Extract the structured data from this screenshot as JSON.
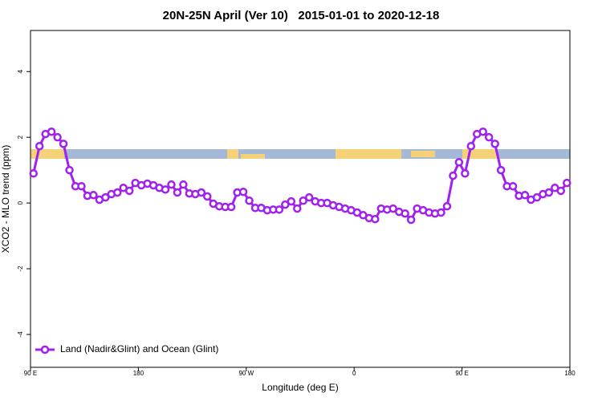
{
  "chart_data": {
    "type": "line",
    "title": "20N-25N April (Ver 10)   2015-01-01 to 2020-12-18",
    "x_label": "Longitude (deg E)",
    "y_label": "XCO2 - MLO trend (ppm)",
    "x": [
      92.5,
      97.5,
      102.5,
      107.5,
      112.5,
      117.5,
      122.5,
      127.5,
      132.5,
      137.5,
      142.5,
      147.5,
      152.5,
      157.5,
      162.5,
      167.5,
      172.5,
      177.5,
      182.5,
      187.5,
      192.5,
      197.5,
      202.5,
      207.5,
      212.5,
      217.5,
      222.5,
      227.5,
      232.5,
      237.5,
      242.5,
      247.5,
      252.5,
      257.5,
      262.5,
      267.5,
      272.5,
      277.5,
      282.5,
      287.5,
      292.5,
      297.5,
      302.5,
      307.5,
      312.5,
      317.5,
      322.5,
      327.5,
      332.5,
      337.5,
      342.5,
      347.5,
      352.5,
      357.5,
      362.5,
      367.5,
      372.5,
      377.5,
      382.5,
      387.5,
      392.5,
      397.5,
      402.5,
      407.5,
      412.5,
      417.5,
      422.5,
      427.5,
      432.5,
      437.5,
      442.5,
      447.5,
      452.5,
      457.5,
      462.5,
      467.5,
      472.5,
      477.5,
      482.5,
      487.5,
      492.5,
      497.5,
      502.5,
      507.5,
      512.5,
      517.5,
      522.5,
      527.5,
      532.5,
      537.5
    ],
    "series": [
      {
        "name": "Land (Nadir&Glint) and Ocean (Glint)",
        "color": "#a020f0",
        "values": [
          0.9,
          1.73,
          2.1,
          2.17,
          2.0,
          1.8,
          1.0,
          0.51,
          0.51,
          0.22,
          0.24,
          0.1,
          0.17,
          0.27,
          0.32,
          0.46,
          0.37,
          0.61,
          0.54,
          0.59,
          0.54,
          0.46,
          0.41,
          0.56,
          0.32,
          0.56,
          0.29,
          0.27,
          0.32,
          0.2,
          -0.02,
          -0.1,
          -0.12,
          -0.12,
          0.32,
          0.34,
          0.07,
          -0.15,
          -0.15,
          -0.22,
          -0.2,
          -0.2,
          -0.05,
          0.05,
          -0.17,
          0.07,
          0.17,
          0.05,
          0,
          0,
          -0.07,
          -0.12,
          -0.17,
          -0.22,
          -0.29,
          -0.37,
          -0.46,
          -0.49,
          -0.17,
          -0.2,
          -0.17,
          -0.27,
          -0.32,
          -0.51,
          -0.17,
          -0.22,
          -0.29,
          -0.32,
          -0.29,
          -0.1,
          0.83,
          1.24,
          0.9,
          1.73,
          2.1,
          2.17,
          2.0,
          1.8,
          1.0,
          0.51,
          0.51,
          0.22,
          0.24,
          0.1,
          0.17,
          0.27,
          0.32,
          0.46,
          0.37,
          0.61
        ]
      }
    ],
    "xlim": [
      90,
      540
    ],
    "xticks": [
      {
        "value": 90,
        "label": "90 E"
      },
      180,
      {
        "value": 270,
        "label": "90 W"
      },
      {
        "value": 360,
        "label": "0"
      },
      {
        "value": 450,
        "label": "90 E"
      },
      {
        "value": 540,
        "label": "180"
      }
    ],
    "ylim": [
      -5,
      5.25
    ],
    "yticks": [
      -4,
      -2,
      0,
      2,
      4
    ],
    "grid": false,
    "legend": "bottom-left"
  }
}
